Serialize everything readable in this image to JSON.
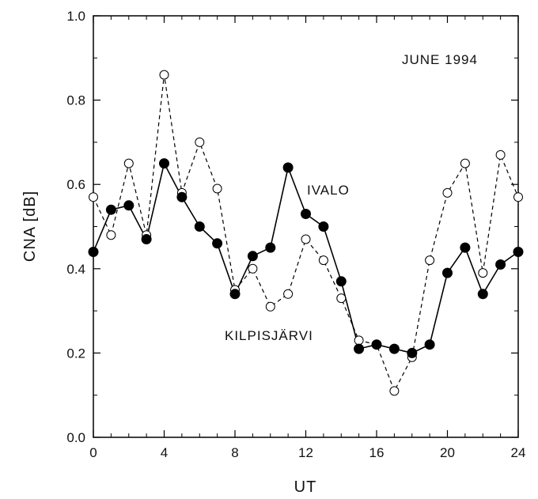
{
  "chart_data": {
    "type": "line",
    "xlabel": "UT",
    "ylabel": "CNA [dB]",
    "xlim": [
      0,
      24
    ],
    "ylim": [
      0.0,
      1.0
    ],
    "xticks": [
      0,
      4,
      8,
      12,
      16,
      20,
      24
    ],
    "yticks": [
      "0.0",
      "0.2",
      "0.4",
      "0.6",
      "0.8",
      "1.0"
    ],
    "grid": false,
    "annotations": {
      "period": "JUNE 1994",
      "ivalo": "IVALO",
      "kilpisjarvi": "KILPISJÄRVI"
    },
    "x": [
      0,
      1,
      2,
      3,
      4,
      5,
      6,
      7,
      8,
      9,
      10,
      11,
      12,
      13,
      14,
      15,
      16,
      17,
      18,
      19,
      20,
      21,
      22,
      23,
      24
    ],
    "series": [
      {
        "name": "IVALO",
        "style": "solid line, filled circles",
        "color": "#000000",
        "values": [
          0.44,
          0.54,
          0.55,
          0.47,
          0.65,
          0.57,
          0.5,
          0.46,
          0.34,
          0.43,
          0.45,
          0.64,
          0.53,
          0.5,
          0.37,
          0.21,
          0.22,
          0.21,
          0.2,
          0.22,
          0.39,
          0.45,
          0.34,
          0.41,
          0.44
        ]
      },
      {
        "name": "KILPISJÄRVI",
        "style": "dashed line, open circles",
        "color": "#000000",
        "values": [
          0.57,
          0.48,
          0.65,
          0.48,
          0.86,
          0.58,
          0.7,
          0.59,
          0.35,
          0.4,
          0.31,
          0.34,
          0.47,
          0.42,
          0.33,
          0.23,
          0.22,
          0.11,
          0.19,
          0.42,
          0.58,
          0.65,
          0.39,
          0.67,
          0.57
        ]
      }
    ]
  }
}
